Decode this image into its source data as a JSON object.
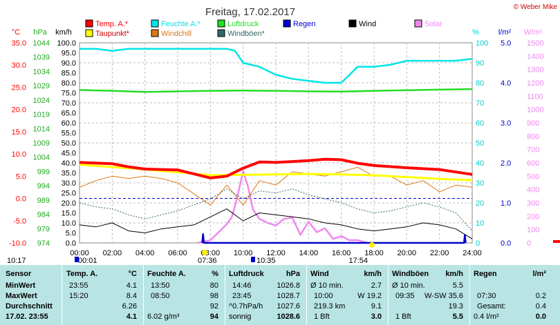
{
  "chart_data": {
    "type": "line",
    "title": "Freitag, 17.02.2017",
    "credit": "© Weber Mike",
    "x_ticks": [
      "00:00",
      "02:00",
      "04:00",
      "06:00",
      "08:00",
      "10:00",
      "12:00",
      "14:00",
      "16:00",
      "18:00",
      "20:00",
      "22:00",
      "24:00"
    ],
    "left_axes": {
      "temp_unit": "°C",
      "hpa_unit": "hPa",
      "kmh_unit": "km/h",
      "temp_ticks": [
        "35.0",
        "30.0",
        "25.0",
        "20.0",
        "15.0",
        "10.0",
        "5.0",
        "0.0",
        "-5.0",
        "-10.0"
      ],
      "hpa_ticks": [
        "1044",
        "1039",
        "1034",
        "1029",
        "1024",
        "1019",
        "1014",
        "1009",
        "1004",
        "999",
        "994",
        "989",
        "984",
        "979",
        "974"
      ],
      "kmh_ticks": [
        "100.0",
        "95.0",
        "90.0",
        "85.0",
        "80.0",
        "75.0",
        "70.0",
        "65.0",
        "60.0",
        "55.0",
        "50.0",
        "45.0",
        "40.0",
        "35.0",
        "30.0",
        "25.0",
        "20.0",
        "15.0",
        "10.0",
        "5.0",
        "0.0"
      ]
    },
    "right_axes": {
      "pct_unit": "%",
      "rain_unit": "l/m²",
      "solar_unit": "W/m²",
      "pct_ticks": [
        "100",
        "90",
        "80",
        "70",
        "60",
        "50",
        "40",
        "30",
        "20",
        "10",
        "0"
      ],
      "rain_ticks": [
        "5.0",
        "4.0",
        "3.0",
        "2.0",
        "1.0",
        "0.0"
      ],
      "solar_ticks": [
        "1500",
        "1400",
        "1300",
        "1200",
        "1100",
        "1000",
        "900",
        "800",
        "700",
        "600",
        "500",
        "400",
        "300",
        "200",
        "100",
        "0"
      ]
    },
    "legend": [
      {
        "label": "Temp. A.*",
        "color": "#ff0000"
      },
      {
        "label": "Feuchte A.*",
        "color": "#00e5e5"
      },
      {
        "label": "Luftdruck",
        "color": "#22dd22"
      },
      {
        "label": "Regen",
        "color": "#0000cc"
      },
      {
        "label": "Wind",
        "color": "#000000"
      },
      {
        "label": "Solar",
        "color": "#ee88ee"
      },
      {
        "label": "Taupunkt*",
        "color": "#ffff00"
      },
      {
        "label": "Windchill",
        "color": "#dd7711"
      },
      {
        "label": "Windböen*",
        "color": "#336666"
      }
    ],
    "series": [
      {
        "name": "Temp. A.*",
        "axis": "temp",
        "color": "#ff0000",
        "x": [
          0,
          2,
          3,
          4,
          6,
          7,
          8,
          9,
          10,
          11,
          12,
          13,
          14,
          15,
          16,
          17,
          18,
          20,
          22,
          24
        ],
        "y": [
          8.1,
          7.8,
          7.1,
          6.6,
          6.4,
          5.5,
          4.6,
          5.0,
          6.8,
          8.2,
          8.1,
          8.3,
          8.5,
          8.8,
          8.7,
          7.9,
          7.4,
          6.9,
          6.5,
          5.4
        ]
      },
      {
        "name": "Taupunkt*",
        "axis": "temp",
        "color": "#ffff00",
        "x": [
          0,
          3,
          6,
          8,
          10,
          12,
          14,
          16,
          18,
          20,
          22,
          24
        ],
        "y": [
          7.6,
          6.8,
          5.9,
          5.2,
          5.3,
          5.4,
          5.5,
          5.4,
          5.2,
          4.8,
          4.4,
          4.1
        ]
      },
      {
        "name": "Windchill",
        "axis": "temp",
        "color": "#dd7711",
        "x": [
          0,
          1,
          2,
          3,
          4,
          5,
          6,
          7,
          8,
          9,
          10,
          11,
          12,
          13,
          14,
          15,
          16,
          17,
          18,
          19,
          20,
          21,
          22,
          23,
          24
        ],
        "y": [
          2.5,
          4,
          5,
          4.5,
          5,
          4.5,
          3.5,
          1,
          -1.5,
          3,
          -1.5,
          4,
          3,
          6,
          5.5,
          5,
          6,
          7,
          5,
          5,
          3,
          4,
          1.5,
          3,
          2.5
        ]
      },
      {
        "name": "Feuchte A.*",
        "axis": "pct",
        "color": "#00e5e5",
        "x": [
          0,
          1,
          2,
          3,
          4,
          5,
          6,
          7,
          8,
          9,
          9.5,
          10,
          11,
          12,
          13,
          14,
          15,
          16,
          17,
          18,
          19,
          20,
          21,
          22,
          23,
          24
        ],
        "y": [
          97,
          97,
          96,
          97,
          97,
          97,
          97,
          97,
          97,
          97,
          96,
          90,
          88,
          84,
          82,
          81,
          80,
          80,
          88,
          88,
          89,
          91,
          91,
          91,
          91,
          92
        ]
      },
      {
        "name": "Luftdruck",
        "axis": "hpa",
        "color": "#22dd22",
        "x": [
          0,
          2,
          4,
          6,
          8,
          10,
          12,
          14,
          16,
          18,
          20,
          22,
          24
        ],
        "y": [
          1027.5,
          1027.2,
          1026.8,
          1027.0,
          1027.2,
          1027.3,
          1027.2,
          1027.0,
          1026.9,
          1027.2,
          1027.4,
          1027.6,
          1027.8
        ]
      },
      {
        "name": "Wind",
        "axis": "kmh",
        "color": "#000000",
        "x": [
          0,
          1,
          2,
          3,
          4,
          5,
          6,
          7,
          8,
          9,
          10,
          11,
          12,
          13,
          14,
          15,
          16,
          17,
          18,
          19,
          20,
          21,
          22,
          23,
          24
        ],
        "y": [
          9,
          8,
          10,
          6,
          5,
          7,
          8,
          9,
          13,
          17,
          11,
          15,
          14,
          13,
          12,
          10,
          9,
          7,
          6,
          7,
          8,
          10,
          9,
          7,
          2
        ]
      },
      {
        "name": "Windböen*",
        "axis": "kmh",
        "color": "#336666",
        "x": [
          0,
          1,
          2,
          3,
          4,
          5,
          6,
          7,
          8,
          9,
          10,
          11,
          12,
          13,
          14,
          15,
          16,
          17,
          18,
          19,
          20,
          21,
          22,
          23,
          24
        ],
        "y": [
          20,
          18,
          17,
          14,
          12,
          14,
          16,
          19,
          22,
          27,
          22,
          26,
          25,
          27,
          24,
          22,
          20,
          17,
          15,
          16,
          18,
          20,
          18,
          15,
          6
        ]
      },
      {
        "name": "Solar",
        "axis": "solar",
        "color": "#ee88ee",
        "x": [
          7.2,
          8,
          8.5,
          9,
          9.3,
          9.6,
          10,
          10.3,
          10.6,
          11,
          11.5,
          12,
          12.5,
          13,
          13.5,
          14,
          14.5,
          15,
          15.5,
          16,
          16.5,
          17,
          17.6
        ],
        "y": [
          0,
          20,
          80,
          140,
          190,
          320,
          540,
          420,
          250,
          180,
          150,
          130,
          180,
          190,
          60,
          160,
          80,
          110,
          30,
          50,
          20,
          20,
          0
        ]
      },
      {
        "name": "Regen",
        "axis": "rain",
        "color": "#0000cc",
        "x": [
          7.5,
          7.55,
          7.6,
          23.5,
          23.55,
          23.6
        ],
        "y": [
          0,
          0.22,
          0,
          0,
          0.2,
          0
        ]
      }
    ],
    "dashed_blue_temp": 0.0,
    "sun_marks": {
      "sunrise": "07:36",
      "sunset": "17:54",
      "moonrise": "00:01",
      "moonset": "10:35",
      "left_time": "10:17"
    }
  },
  "stats": {
    "col_sensor": {
      "head": "Sensor",
      "rows": [
        "MinWert",
        "MaxWert",
        "Durchschnitt",
        "17.02. 23:55"
      ]
    },
    "col_temp": {
      "head": "Temp. A.",
      "unit": "°C",
      "rows": [
        [
          "23:55",
          "4.1"
        ],
        [
          "15:20",
          "8.4"
        ],
        [
          "",
          "6.26"
        ],
        [
          "",
          "4.1"
        ]
      ]
    },
    "col_hum": {
      "head": "Feuchte A.",
      "unit": "%",
      "rows": [
        [
          "13:50",
          "80"
        ],
        [
          "08:50",
          "98"
        ],
        [
          "",
          "92"
        ],
        [
          "6.02 g/m³",
          "94"
        ]
      ]
    },
    "col_press": {
      "head": "Luftdruck",
      "unit": "hPa",
      "rows": [
        [
          "14:46",
          "1026.8"
        ],
        [
          "23:45",
          "1028.7"
        ],
        [
          "^0.7hPa/h",
          "1027.6"
        ],
        [
          "sonnig",
          "1028.6"
        ]
      ]
    },
    "col_wind": {
      "head": "Wind",
      "unit": "km/h",
      "rows": [
        [
          "Ø 10 min.",
          "2.7"
        ],
        [
          "10:00",
          "W 19.2"
        ],
        [
          "219.3 km",
          "9.1"
        ],
        [
          "1 Bft",
          "3.0"
        ]
      ]
    },
    "col_gust": {
      "head": "Windböen",
      "unit": "km/h",
      "rows": [
        [
          "Ø 10 min.",
          "5.5"
        ],
        [
          "09:35",
          "W-SW 35.6"
        ],
        [
          "",
          "19.3"
        ],
        [
          "1 Bft",
          "5.5"
        ]
      ]
    },
    "col_rain": {
      "head": "Regen",
      "unit": "l/m²",
      "rows": [
        [
          "",
          ""
        ],
        [
          "07:30",
          "0.2"
        ],
        [
          "Gesamt:",
          "0.4"
        ],
        [
          "0.4 l/m²",
          "0.0"
        ]
      ]
    }
  }
}
